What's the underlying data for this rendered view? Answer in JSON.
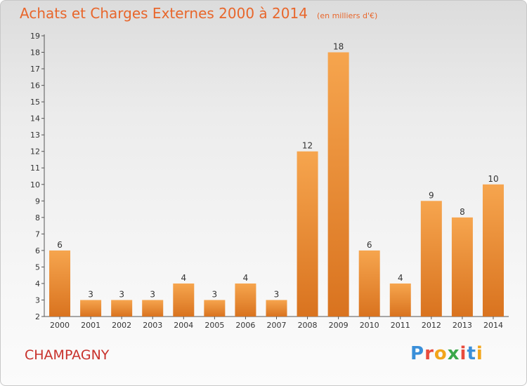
{
  "header": {
    "title": "Achats et Charges Externes 2000 à 2014",
    "subtitle": "(en milliers d'€)"
  },
  "footer": {
    "place": "CHAMPAGNY",
    "logo_text": "Proxiti"
  },
  "colors": {
    "title": "#e8662b",
    "place": "#c8312b",
    "bar_light": "#f6a54e",
    "bar_dark": "#d9731f"
  },
  "chart_data": {
    "type": "bar",
    "title": "Achats et Charges Externes 2000 à 2014",
    "subtitle": "(en milliers d'€)",
    "categories": [
      "2000",
      "2001",
      "2002",
      "2003",
      "2004",
      "2005",
      "2006",
      "2007",
      "2008",
      "2009",
      "2010",
      "2011",
      "2012",
      "2013",
      "2014"
    ],
    "values": [
      6,
      3,
      3,
      3,
      4,
      3,
      4,
      3,
      12,
      18,
      6,
      4,
      9,
      8,
      10
    ],
    "ylim": [
      2,
      19
    ],
    "yticks": [
      2,
      3,
      4,
      5,
      6,
      7,
      8,
      9,
      10,
      11,
      12,
      13,
      14,
      15,
      16,
      17,
      18,
      19
    ],
    "xlabel": "",
    "ylabel": "",
    "grid": false,
    "legend": "none"
  }
}
